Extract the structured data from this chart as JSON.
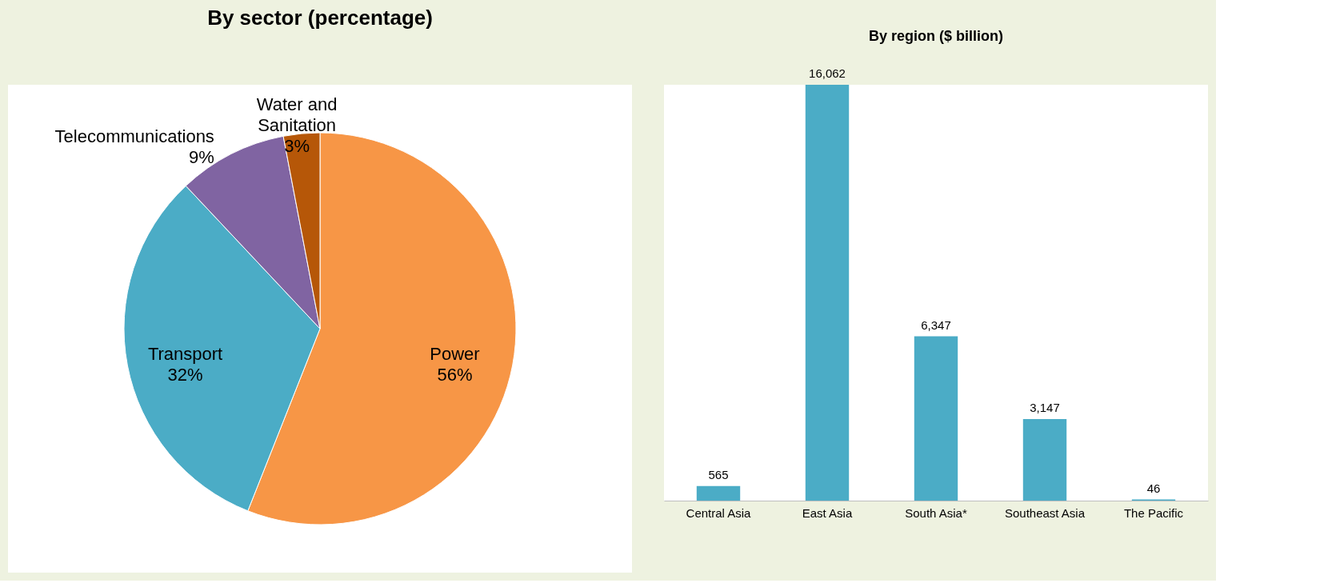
{
  "chart_data": [
    {
      "type": "pie",
      "title": "By sector (percentage)",
      "categories": [
        "Power",
        "Transport",
        "Telecommunications",
        "Water and Sanitation"
      ],
      "values": [
        56,
        32,
        9,
        3
      ],
      "colors": [
        "#f79646",
        "#4bacc6",
        "#8064a2",
        "#b65708"
      ],
      "value_labels": [
        "56%",
        "32%",
        "9%",
        "3%"
      ]
    },
    {
      "type": "bar",
      "title": "By region  ($ billion)",
      "categories": [
        "Central Asia",
        "East Asia",
        "South Asia*",
        "Southeast Asia",
        "The Pacific"
      ],
      "values": [
        565,
        16062,
        6347,
        3147,
        46
      ],
      "color": "#4bacc6",
      "value_labels": [
        "565",
        "16,062",
        "6,347",
        "3,147",
        "46"
      ],
      "tick_labels": "x"
    }
  ]
}
